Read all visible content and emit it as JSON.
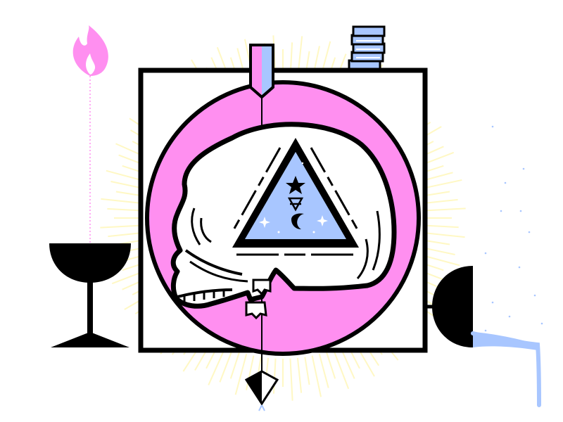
{
  "palette": {
    "ink": "#000000",
    "paper": "#ffffff",
    "pink": "#ff8ff0",
    "blue": "#a8c6ff",
    "glow": "#fff8c4",
    "flame": "#ff8ff0"
  },
  "icons": {
    "flame": "flame-icon",
    "goblet": "goblet-icon",
    "skull": "skull-icon",
    "triangle": "alchemy-triangle-icon",
    "star": "star-icon",
    "moon": "moon-icon",
    "coins": "coin-stack-icon",
    "arrow": "arrow-icon",
    "bowl": "bowl-icon"
  }
}
